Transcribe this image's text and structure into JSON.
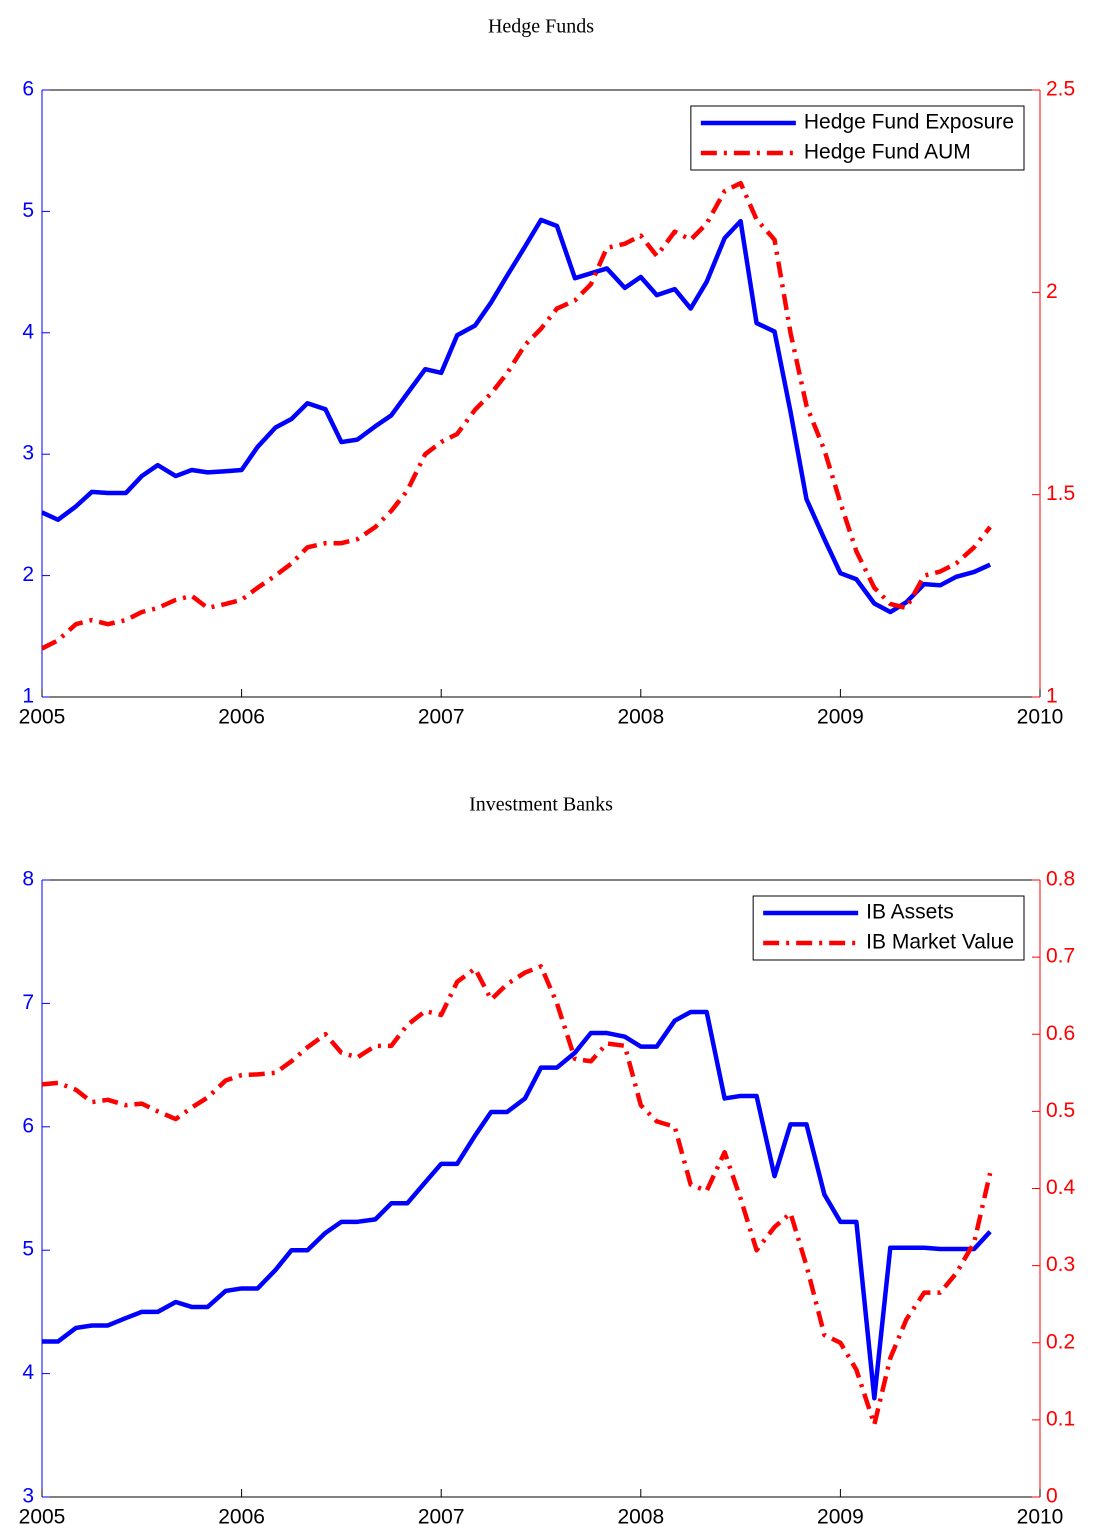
{
  "chart_data": [
    {
      "type": "line",
      "title": "Hedge Funds",
      "x": [
        2005,
        2005.08,
        2005.17,
        2005.25,
        2005.33,
        2005.42,
        2005.5,
        2005.58,
        2005.67,
        2005.75,
        2005.83,
        2005.92,
        2006,
        2006.08,
        2006.17,
        2006.25,
        2006.33,
        2006.42,
        2006.5,
        2006.58,
        2006.67,
        2006.75,
        2006.83,
        2006.92,
        2007,
        2007.08,
        2007.17,
        2007.25,
        2007.33,
        2007.42,
        2007.5,
        2007.58,
        2007.67,
        2007.75,
        2007.83,
        2007.92,
        2008,
        2008.08,
        2008.17,
        2008.25,
        2008.33,
        2008.42,
        2008.5,
        2008.58,
        2008.67,
        2008.75,
        2008.83,
        2008.92,
        2009,
        2009.08,
        2009.17,
        2009.25,
        2009.33,
        2009.42,
        2009.5,
        2009.58,
        2009.67,
        2009.75
      ],
      "xlim": [
        2005,
        2010
      ],
      "xticks": [
        2005,
        2006,
        2007,
        2008,
        2009,
        2010
      ],
      "ylim": [
        1,
        6
      ],
      "yticks": [
        1,
        2,
        3,
        4,
        5,
        6
      ],
      "y2lim": [
        1,
        2.5
      ],
      "y2ticks": [
        1,
        1.5,
        2,
        2.5
      ],
      "legend": "upper right",
      "series": [
        {
          "name": "Hedge Fund Exposure",
          "color": "#0000ff",
          "style": "solid",
          "values": [
            2.52,
            2.46,
            2.57,
            2.69,
            2.68,
            2.68,
            2.82,
            2.91,
            2.82,
            2.87,
            2.85,
            2.86,
            2.87,
            3.06,
            3.22,
            3.29,
            3.42,
            3.37,
            3.1,
            3.12,
            3.23,
            3.32,
            3.5,
            3.7,
            3.67,
            3.98,
            4.06,
            4.25,
            4.47,
            4.71,
            4.93,
            4.88,
            4.45,
            4.49,
            4.53,
            4.37,
            4.46,
            4.31,
            4.36,
            4.2,
            4.42,
            4.78,
            4.92,
            4.08,
            4.01,
            3.35,
            2.63,
            2.3,
            2.02,
            1.97,
            1.77,
            1.7,
            1.78,
            1.93,
            1.92,
            1.99,
            2.03,
            2.09
          ]
        },
        {
          "name": "Hedge Fund AUM",
          "color": "#ff0000",
          "style": "dashdot",
          "axis": "y2",
          "values": [
            1.12,
            1.14,
            1.18,
            1.19,
            1.18,
            1.19,
            1.21,
            1.22,
            1.24,
            1.25,
            1.22,
            1.23,
            1.24,
            1.27,
            1.3,
            1.33,
            1.37,
            1.38,
            1.38,
            1.39,
            1.42,
            1.46,
            1.51,
            1.6,
            1.63,
            1.65,
            1.71,
            1.75,
            1.8,
            1.87,
            1.91,
            1.96,
            1.98,
            2.02,
            2.11,
            2.12,
            2.14,
            2.09,
            2.15,
            2.13,
            2.17,
            2.25,
            2.27,
            2.18,
            2.13,
            1.9,
            1.72,
            1.61,
            1.48,
            1.36,
            1.27,
            1.23,
            1.22,
            1.3,
            1.31,
            1.33,
            1.37,
            1.42
          ]
        }
      ]
    },
    {
      "type": "line",
      "title": "Investment Banks",
      "x": [
        2005,
        2005.08,
        2005.17,
        2005.25,
        2005.33,
        2005.42,
        2005.5,
        2005.58,
        2005.67,
        2005.75,
        2005.83,
        2005.92,
        2006,
        2006.08,
        2006.17,
        2006.25,
        2006.33,
        2006.42,
        2006.5,
        2006.58,
        2006.67,
        2006.75,
        2006.83,
        2006.92,
        2007,
        2007.08,
        2007.17,
        2007.25,
        2007.33,
        2007.42,
        2007.5,
        2007.58,
        2007.67,
        2007.75,
        2007.83,
        2007.92,
        2008,
        2008.08,
        2008.17,
        2008.25,
        2008.33,
        2008.42,
        2008.5,
        2008.58,
        2008.67,
        2008.75,
        2008.83,
        2008.92,
        2009,
        2009.08,
        2009.17,
        2009.25,
        2009.33,
        2009.42,
        2009.5,
        2009.58,
        2009.67,
        2009.75
      ],
      "xlim": [
        2005,
        2010
      ],
      "xticks": [
        2005,
        2006,
        2007,
        2008,
        2009,
        2010
      ],
      "ylim": [
        3,
        8
      ],
      "yticks": [
        3,
        4,
        5,
        6,
        7,
        8
      ],
      "y2lim": [
        0,
        0.8
      ],
      "y2ticks": [
        0,
        0.1,
        0.2,
        0.3,
        0.4,
        0.5,
        0.6,
        0.7,
        0.8
      ],
      "legend": "upper right",
      "series": [
        {
          "name": "IB Assets",
          "color": "#0000ff",
          "style": "solid",
          "values": [
            4.26,
            4.26,
            4.37,
            4.39,
            4.39,
            4.45,
            4.5,
            4.5,
            4.58,
            4.54,
            4.54,
            4.67,
            4.69,
            4.69,
            4.84,
            5.0,
            5.0,
            5.14,
            5.23,
            5.23,
            5.25,
            5.38,
            5.38,
            5.55,
            5.7,
            5.7,
            5.93,
            6.12,
            6.12,
            6.23,
            6.48,
            6.48,
            6.6,
            6.76,
            6.76,
            6.73,
            6.65,
            6.65,
            6.86,
            6.93,
            6.93,
            6.23,
            6.25,
            6.25,
            5.6,
            6.02,
            6.02,
            5.45,
            5.23,
            5.23,
            3.8,
            5.02,
            5.02,
            5.02,
            5.01,
            5.01,
            5.01,
            5.15
          ]
        },
        {
          "name": "IB Market Value",
          "color": "#ff0000",
          "style": "dashdot",
          "axis": "y2",
          "values": [
            0.535,
            0.537,
            0.528,
            0.512,
            0.515,
            0.508,
            0.51,
            0.5,
            0.49,
            0.505,
            0.518,
            0.54,
            0.547,
            0.548,
            0.55,
            0.565,
            0.583,
            0.6,
            0.576,
            0.57,
            0.585,
            0.585,
            0.612,
            0.63,
            0.625,
            0.668,
            0.685,
            0.645,
            0.665,
            0.68,
            0.688,
            0.64,
            0.568,
            0.565,
            0.588,
            0.585,
            0.508,
            0.487,
            0.48,
            0.405,
            0.397,
            0.447,
            0.387,
            0.32,
            0.35,
            0.368,
            0.3,
            0.21,
            0.2,
            0.165,
            0.094,
            0.18,
            0.23,
            0.265,
            0.265,
            0.29,
            0.33,
            0.42
          ]
        }
      ]
    }
  ]
}
